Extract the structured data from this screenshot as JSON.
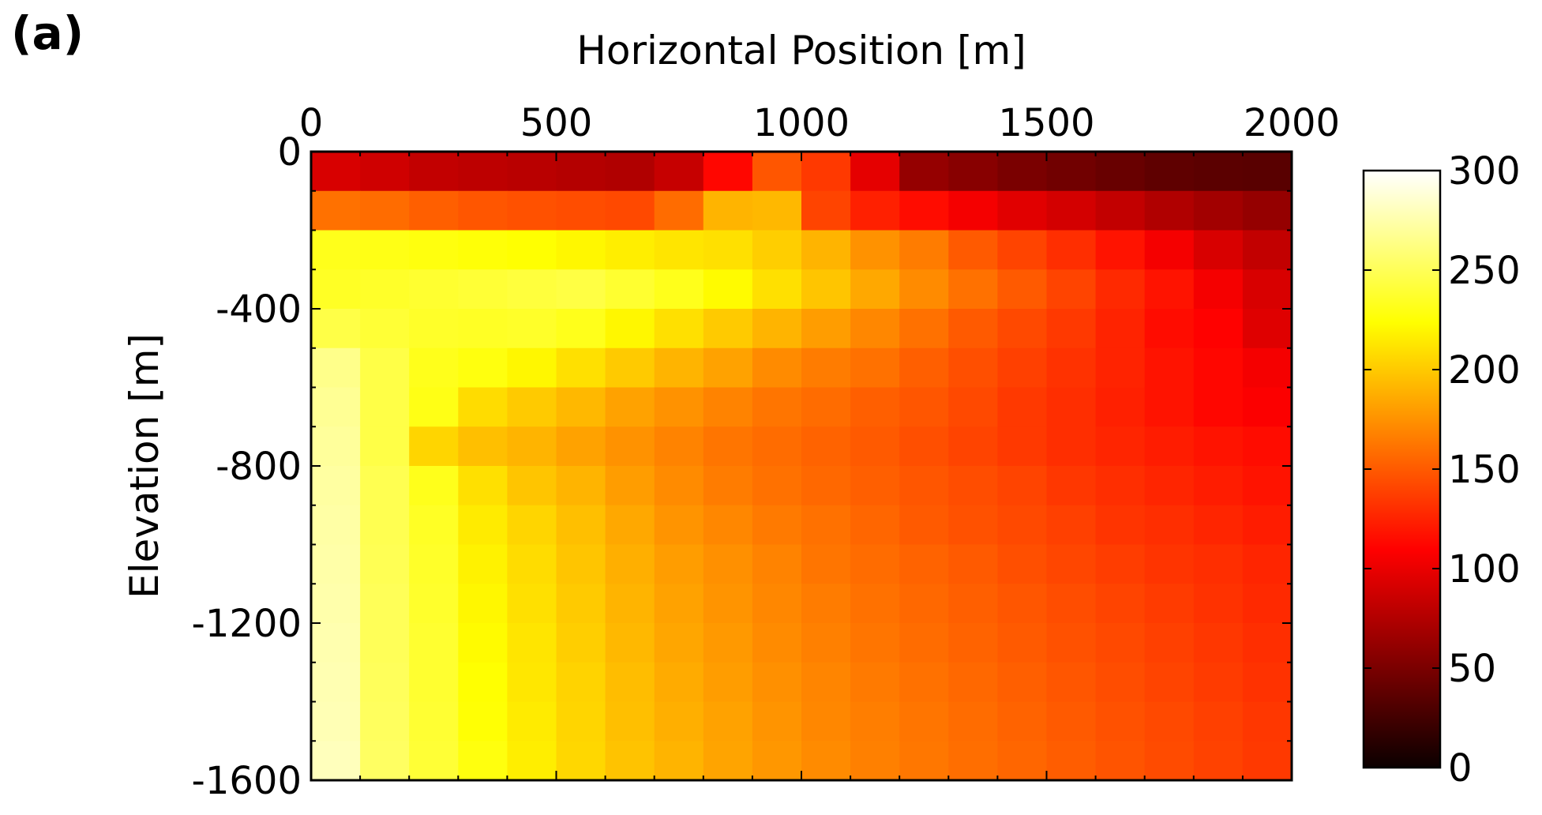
{
  "panel_label": "(a)",
  "chart_data": {
    "type": "heatmap",
    "title": "",
    "xlabel": "Horizontal Position [m]",
    "ylabel": "Elevation [m]",
    "xlim": [
      0,
      2000
    ],
    "ylim": [
      -1600,
      0
    ],
    "x_ticks": [
      0,
      500,
      1000,
      1500,
      2000
    ],
    "y_ticks": [
      0,
      -400,
      -800,
      -1200,
      -1600
    ],
    "x_axis_position": "top",
    "cell_width": 100,
    "cell_height": 100,
    "x_edges": [
      0,
      100,
      200,
      300,
      400,
      500,
      600,
      700,
      800,
      900,
      1000,
      1100,
      1200,
      1300,
      1400,
      1500,
      1600,
      1700,
      1800,
      1900,
      2000
    ],
    "y_edges": [
      0,
      -100,
      -200,
      -300,
      -400,
      -500,
      -600,
      -700,
      -800,
      -900,
      -1000,
      -1100,
      -1200,
      -1300,
      -1400,
      -1500,
      -1600
    ],
    "colormap": "hot",
    "colorbar": {
      "min": 0,
      "max": 300,
      "ticks": [
        0,
        50,
        100,
        150,
        200,
        250,
        300
      ],
      "placement": "right"
    },
    "grid": false,
    "values": [
      [
        92,
        88,
        82,
        80,
        78,
        76,
        74,
        84,
        112,
        148,
        135,
        98,
        62,
        56,
        50,
        46,
        42,
        38,
        36,
        35
      ],
      [
        160,
        158,
        152,
        148,
        146,
        144,
        142,
        158,
        190,
        192,
        140,
        124,
        115,
        105,
        96,
        90,
        82,
        74,
        68,
        62
      ],
      [
        232,
        230,
        228,
        226,
        224,
        220,
        216,
        212,
        210,
        202,
        190,
        175,
        165,
        150,
        140,
        130,
        118,
        105,
        92,
        82
      ],
      [
        235,
        236,
        238,
        240,
        242,
        244,
        238,
        232,
        222,
        210,
        198,
        185,
        172,
        160,
        150,
        140,
        128,
        118,
        105,
        92
      ],
      [
        245,
        240,
        236,
        235,
        236,
        232,
        220,
        210,
        200,
        190,
        180,
        170,
        160,
        150,
        142,
        135,
        125,
        115,
        110,
        95
      ],
      [
        265,
        245,
        232,
        228,
        220,
        210,
        200,
        190,
        182,
        172,
        165,
        160,
        152,
        145,
        138,
        132,
        125,
        118,
        112,
        105
      ],
      [
        268,
        245,
        230,
        208,
        200,
        192,
        182,
        175,
        168,
        162,
        158,
        152,
        148,
        142,
        135,
        130,
        124,
        118,
        112,
        108
      ],
      [
        270,
        245,
        205,
        195,
        190,
        182,
        175,
        168,
        162,
        158,
        154,
        150,
        145,
        140,
        135,
        130,
        126,
        122,
        118,
        115
      ],
      [
        272,
        248,
        232,
        210,
        198,
        190,
        180,
        172,
        165,
        160,
        156,
        152,
        148,
        144,
        140,
        134,
        130,
        126,
        122,
        118
      ],
      [
        273,
        248,
        235,
        215,
        205,
        195,
        185,
        176,
        170,
        164,
        160,
        155,
        150,
        146,
        142,
        138,
        133,
        130,
        126,
        122
      ],
      [
        274,
        249,
        236,
        218,
        208,
        198,
        188,
        180,
        174,
        168,
        162,
        158,
        154,
        150,
        145,
        141,
        137,
        133,
        130,
        126
      ],
      [
        275,
        250,
        237,
        220,
        210,
        200,
        190,
        182,
        176,
        170,
        165,
        160,
        156,
        152,
        148,
        144,
        140,
        136,
        132,
        128
      ],
      [
        276,
        250,
        238,
        222,
        212,
        202,
        192,
        184,
        178,
        172,
        167,
        162,
        158,
        154,
        150,
        146,
        142,
        138,
        134,
        130
      ],
      [
        277,
        251,
        238,
        224,
        213,
        204,
        194,
        186,
        180,
        174,
        169,
        164,
        160,
        156,
        152,
        148,
        144,
        140,
        136,
        132
      ],
      [
        278,
        252,
        239,
        225,
        215,
        205,
        195,
        188,
        182,
        176,
        170,
        166,
        162,
        158,
        154,
        150,
        146,
        142,
        138,
        134
      ],
      [
        280,
        253,
        240,
        228,
        216,
        206,
        197,
        190,
        183,
        177,
        172,
        167,
        163,
        159,
        155,
        151,
        147,
        143,
        139,
        135
      ]
    ]
  }
}
